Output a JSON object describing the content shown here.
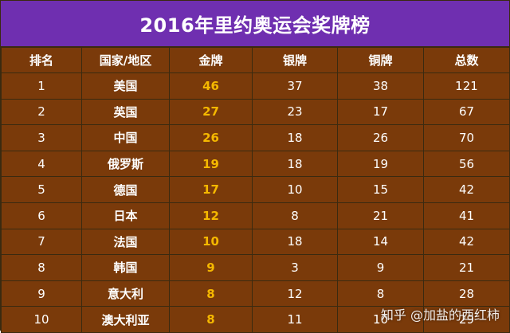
{
  "title": "2016年里约奥运会奖牌榜",
  "headers": [
    "排名",
    "国家/地区",
    "金牌",
    "银牌",
    "铜牌",
    "总数"
  ],
  "rows": [
    [
      "1",
      "美国",
      "46",
      "37",
      "38",
      "121"
    ],
    [
      "2",
      "英国",
      "27",
      "23",
      "17",
      "67"
    ],
    [
      "3",
      "中国",
      "26",
      "18",
      "26",
      "70"
    ],
    [
      "4",
      "俄罗斯",
      "19",
      "18",
      "19",
      "56"
    ],
    [
      "5",
      "德国",
      "17",
      "10",
      "15",
      "42"
    ],
    [
      "6",
      "日本",
      "12",
      "8",
      "21",
      "41"
    ],
    [
      "7",
      "法国",
      "10",
      "18",
      "14",
      "42"
    ],
    [
      "8",
      "韩国",
      "9",
      "3",
      "9",
      "21"
    ],
    [
      "9",
      "意大利",
      "8",
      "12",
      "8",
      "28"
    ],
    [
      "10",
      "澳大利亚",
      "8",
      "11",
      "10",
      "29"
    ]
  ],
  "watermark": "知乎 @加盐的西红柿",
  "colors": {
    "title_bg": "#6f2fb0",
    "table_bg": "#7a3a0a",
    "gold_text": "#f5b800",
    "text": "#ffffff"
  }
}
